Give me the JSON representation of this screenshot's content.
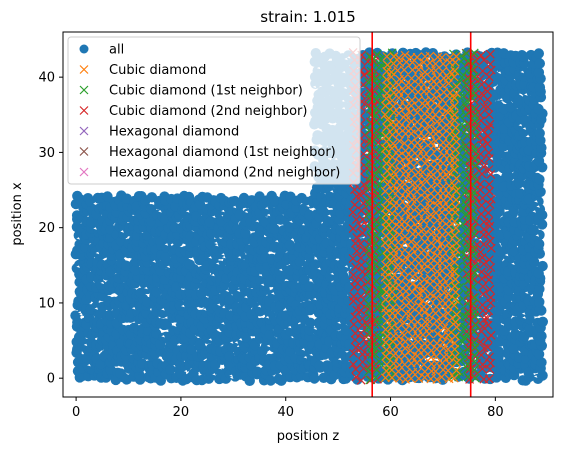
{
  "chart_data": {
    "type": "scatter",
    "title": "strain: 1.015",
    "xlabel": "position z",
    "ylabel": "position x",
    "xlim": [
      -2.5,
      91.0
    ],
    "ylim": [
      -2.5,
      46.0
    ],
    "x_ticks": [
      0,
      20,
      40,
      60,
      80
    ],
    "y_ticks": [
      0,
      10,
      20,
      30,
      40
    ],
    "grid": false,
    "legend_position": "top-left",
    "series": [
      {
        "name": "all",
        "marker": "circle",
        "color": "#1f77b4",
        "points_described": "dense atom positions filling z from about 0 to 89, x from about 0 to 44; the region z < 57 rises only to about x = 24 over most of its width, with a taller column near z = 45–56 reaching about x = 43; z > 75 rises to about x = 43"
      },
      {
        "name": "Cubic diamond",
        "marker": "x",
        "color": "#ff7f0e",
        "points_described": "band at z ≈ 59–74, x ≈ 0–43"
      },
      {
        "name": "Cubic diamond (1st neighbor)",
        "marker": "x",
        "color": "#2ca02c",
        "points_described": "band edges at z ≈ 56–60 and z ≈ 72–76, x ≈ 0–43"
      },
      {
        "name": "Cubic diamond (2nd neighbor)",
        "marker": "x",
        "color": "#d62728",
        "points_described": "band edges at z ≈ 53–58 and z ≈ 75–79, x ≈ 0–43"
      },
      {
        "name": "Hexagonal diamond",
        "marker": "x",
        "color": "#9467bd",
        "points_described": "no visible points"
      },
      {
        "name": "Hexagonal diamond (1st neighbor)",
        "marker": "x",
        "color": "#8c564b",
        "points_described": "no visible points"
      },
      {
        "name": "Hexagonal diamond (2nd neighbor)",
        "marker": "x",
        "color": "#e377c2",
        "points_described": "no visible points"
      }
    ],
    "vertical_lines": [
      {
        "x": 56.5,
        "color": "#ff0000"
      },
      {
        "x": 75.3,
        "color": "#ff0000"
      }
    ]
  }
}
